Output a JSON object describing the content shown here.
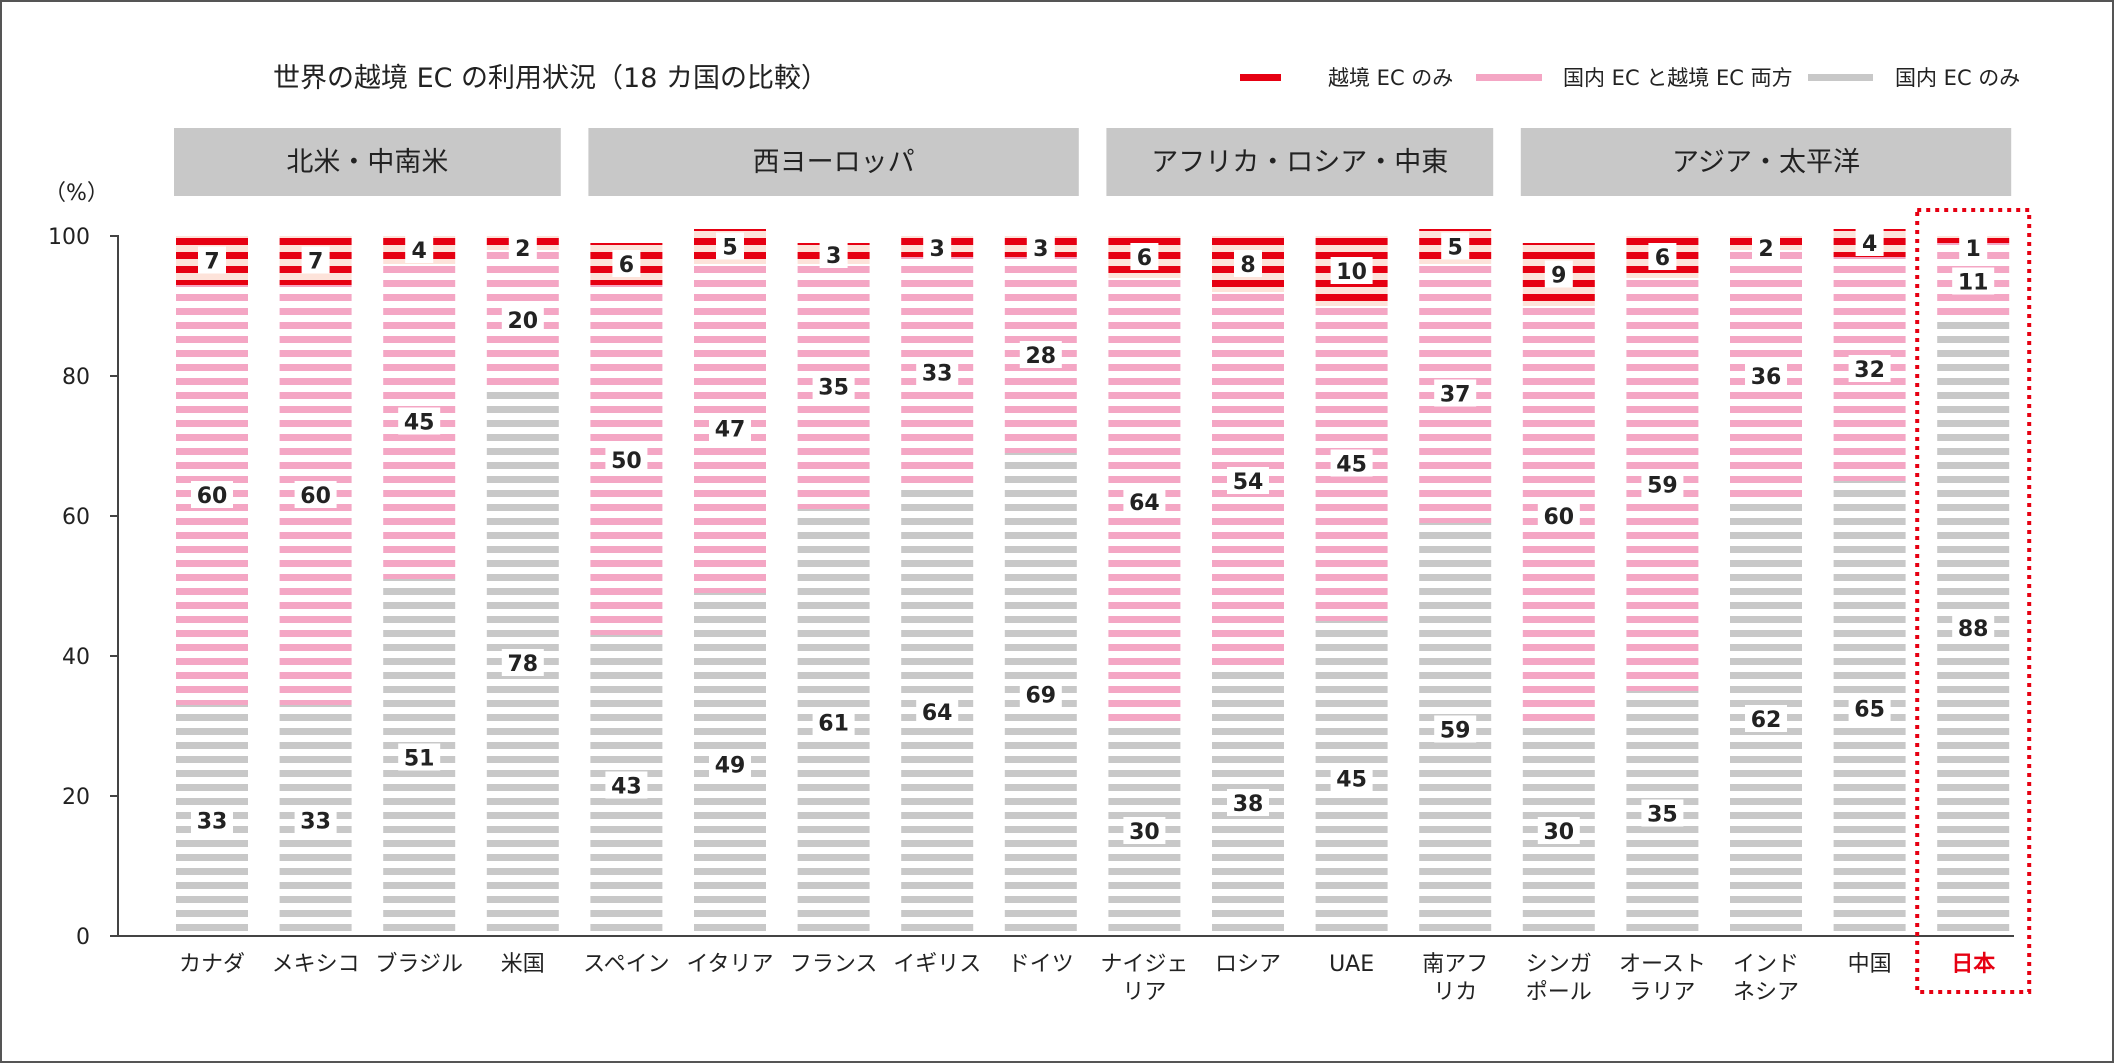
{
  "chart_data": {
    "type": "bar",
    "stacked": true,
    "title": "世界の越境 EC の利用状況（18 カ国の比較）",
    "yunit": "（%）",
    "ylim": [
      0,
      100
    ],
    "yticks": [
      0,
      20,
      40,
      60,
      80,
      100
    ],
    "grid": false,
    "legend_position": "top-right",
    "colors": {
      "cross": "#e60012",
      "both": "#f4a6c4",
      "domestic": "#c8c8c8",
      "group_header": "#c8c8c8",
      "highlight": "#e60012",
      "axis": "#444444",
      "text": "#222222",
      "cross_bg": "#fde3da"
    },
    "categories": [
      [
        "カナダ"
      ],
      [
        "メキシコ"
      ],
      [
        "ブラジル"
      ],
      [
        "米国"
      ],
      [
        "スペイン"
      ],
      [
        "イタリア"
      ],
      [
        "フランス"
      ],
      [
        "イギリス"
      ],
      [
        "ドイツ"
      ],
      [
        "ナイジェ",
        "リア"
      ],
      [
        "ロシア"
      ],
      [
        "UAE"
      ],
      [
        "南アフ",
        "リカ"
      ],
      [
        "シンガ",
        "ポール"
      ],
      [
        "オースト",
        "ラリア"
      ],
      [
        "インド",
        "ネシア"
      ],
      [
        "中国"
      ],
      [
        "日本"
      ]
    ],
    "highlight_index": 17,
    "series": [
      {
        "name": "国内 EC のみ",
        "key": "domestic",
        "values": [
          33,
          33,
          51,
          78,
          43,
          49,
          61,
          64,
          69,
          30,
          38,
          45,
          59,
          30,
          35,
          62,
          65,
          88
        ]
      },
      {
        "name": "国内 EC と越境 EC 両方",
        "key": "both",
        "values": [
          60,
          60,
          45,
          20,
          50,
          47,
          35,
          33,
          28,
          64,
          54,
          45,
          37,
          60,
          59,
          36,
          32,
          11
        ]
      },
      {
        "name": "越境 EC のみ",
        "key": "cross",
        "values": [
          7,
          7,
          4,
          2,
          6,
          5,
          3,
          3,
          3,
          6,
          8,
          10,
          5,
          9,
          6,
          2,
          4,
          1
        ]
      }
    ],
    "legend_order": [
      "cross",
      "both",
      "domestic"
    ],
    "groups": [
      {
        "label": "北米・中南米",
        "start": 0,
        "end": 3
      },
      {
        "label": "西ヨーロッパ",
        "start": 4,
        "end": 8
      },
      {
        "label": "アフリカ・ロシア・中東",
        "start": 9,
        "end": 12
      },
      {
        "label": "アジア・太平洋",
        "start": 13,
        "end": 17
      }
    ]
  }
}
